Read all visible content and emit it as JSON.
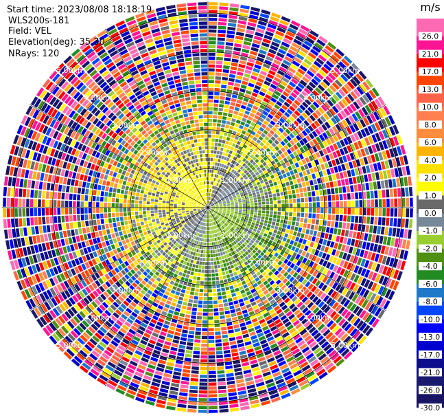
{
  "header": {
    "start_time": "Start time: 2023/08/08 18:18:19",
    "device": "WLS200s-181",
    "field": "Field: VEL",
    "elevation": "Elevation(deg): 35.30",
    "nrays": "NRays: 120"
  },
  "chart_data": {
    "type": "heatmap",
    "subtype": "polar-ppi",
    "field": "VEL",
    "nrays": 120,
    "elevation_deg": 35.3,
    "range_rings_km": [
      1.0,
      2.0,
      3.0,
      4.0,
      5.0
    ],
    "range_ring_labels": [
      "1.00km",
      "2.00km",
      "3.00km",
      "4.00km",
      "5.00km"
    ],
    "max_range_km": 5.3,
    "grid": true,
    "colorbar": {
      "unit": "m/s",
      "levels": [
        -30.0,
        -26.0,
        -21.0,
        -17.0,
        -13.0,
        -10.0,
        -8.0,
        -6.0,
        -4.0,
        -2.0,
        -1.0,
        0.0,
        1.0,
        2.0,
        4.0,
        6.0,
        8.0,
        10.0,
        13.0,
        17.0,
        21.0,
        26.0,
        30.0
      ],
      "tick_labels": [
        "-30.0",
        "-26.0",
        "-21.0",
        "-17.0",
        "-13.0",
        "-10.0",
        "-8.0",
        "-6.0",
        "-4.0",
        "-2.0",
        "-1.0",
        "0.0",
        "1.0",
        "2.0",
        "4.0",
        "6.0",
        "8.0",
        "10.0",
        "13.0",
        "17.0",
        "21.0",
        "26.0"
      ],
      "colors": [
        "#1a1464",
        "#191970",
        "#0c0c8c",
        "#0000cd",
        "#0000ff",
        "#0046ff",
        "#1e78c8",
        "#228b22",
        "#4f8f12",
        "#9acd32",
        "#778899",
        "#696969",
        "#ffff00",
        "#ffe100",
        "#ffb400",
        "#ff8c3c",
        "#ff7f50",
        "#ff6347",
        "#ff4500",
        "#ff0000",
        "#ff1493",
        "#ff69b4"
      ]
    }
  }
}
